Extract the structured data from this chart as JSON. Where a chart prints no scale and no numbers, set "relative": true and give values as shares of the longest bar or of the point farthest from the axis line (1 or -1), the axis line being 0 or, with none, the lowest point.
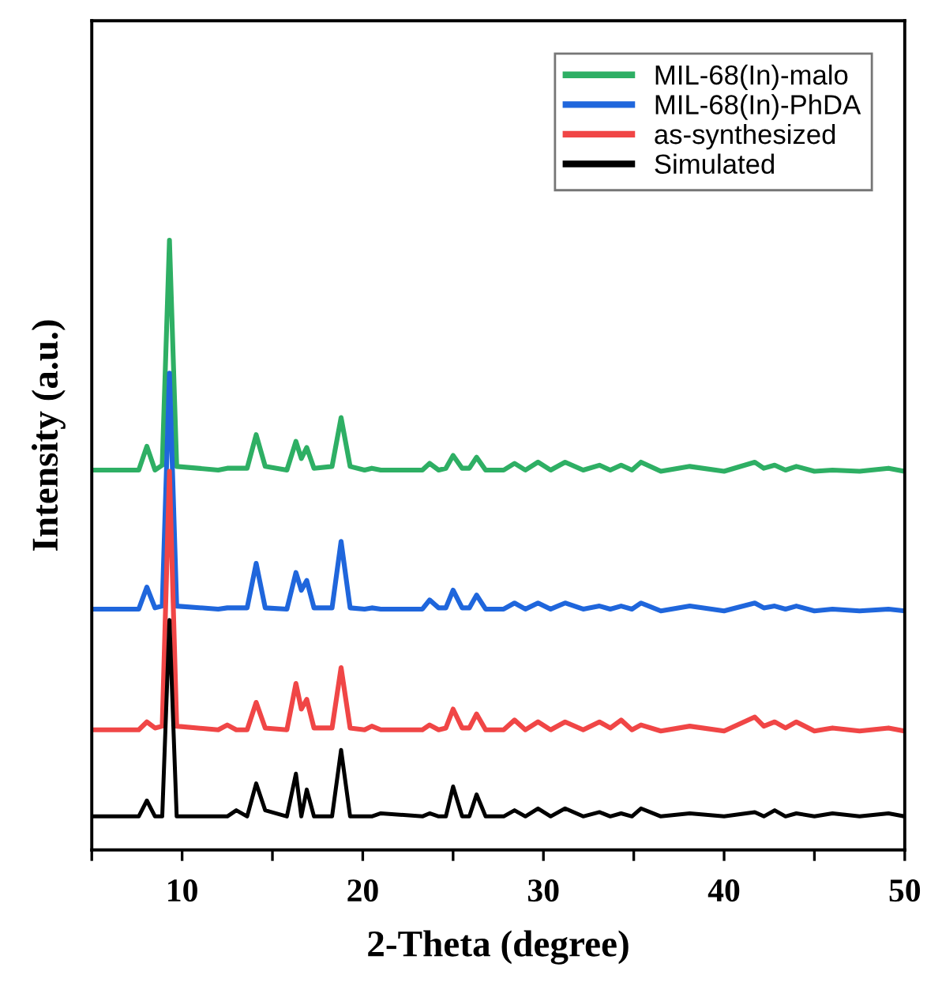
{
  "chart_data": {
    "type": "line",
    "relative": true,
    "xlabel": "2-Theta (degree)",
    "ylabel": "Intensity (a.u.)",
    "xlim": [
      5,
      50
    ],
    "xticks": [
      {
        "value": 5,
        "label": null
      },
      10,
      {
        "value": 15,
        "label": null
      },
      20,
      {
        "value": 25,
        "label": null
      },
      30,
      {
        "value": 35,
        "label": null
      },
      40,
      {
        "value": 45,
        "label": null
      },
      50
    ],
    "legend": "top right",
    "grid": false,
    "marker": "none",
    "line_style": "solid",
    "x": [
      5,
      7.6,
      8.05,
      8.5,
      8.9,
      9.3,
      9.7,
      12.0,
      12.5,
      13.0,
      13.6,
      14.1,
      14.6,
      15.8,
      16.3,
      16.6,
      16.9,
      17.3,
      18.3,
      18.8,
      19.3,
      20.1,
      20.5,
      21.0,
      23.3,
      23.7,
      24.2,
      24.6,
      25.0,
      25.5,
      25.9,
      26.3,
      26.8,
      27.8,
      28.4,
      29.0,
      29.7,
      30.4,
      31.2,
      32.2,
      33.1,
      33.7,
      34.3,
      34.9,
      35.4,
      36.5,
      38.1,
      40.0,
      41.7,
      42.2,
      42.8,
      43.4,
      44.0,
      45.0,
      46.0,
      47.5,
      49.1,
      50
    ],
    "series": [
      {
        "name": "MIL-68(In)-malo",
        "color": "#2eaf64",
        "values": [
          0.623,
          0.623,
          0.662,
          0.623,
          0.631,
          1.0,
          0.629,
          0.623,
          0.626,
          0.626,
          0.626,
          0.681,
          0.629,
          0.623,
          0.67,
          0.642,
          0.66,
          0.626,
          0.629,
          0.709,
          0.629,
          0.623,
          0.626,
          0.623,
          0.623,
          0.634,
          0.623,
          0.626,
          0.647,
          0.626,
          0.626,
          0.644,
          0.623,
          0.623,
          0.634,
          0.623,
          0.636,
          0.623,
          0.636,
          0.623,
          0.631,
          0.623,
          0.631,
          0.623,
          0.636,
          0.621,
          0.629,
          0.621,
          0.636,
          0.626,
          0.631,
          0.623,
          0.629,
          0.621,
          0.623,
          0.621,
          0.626,
          0.621
        ]
      },
      {
        "name": "MIL-68(In)-PhDA",
        "color": "#1f66dc",
        "values": [
          0.395,
          0.395,
          0.431,
          0.397,
          0.4,
          0.782,
          0.4,
          0.395,
          0.397,
          0.397,
          0.397,
          0.47,
          0.397,
          0.395,
          0.455,
          0.426,
          0.442,
          0.397,
          0.397,
          0.506,
          0.397,
          0.395,
          0.397,
          0.395,
          0.395,
          0.41,
          0.397,
          0.397,
          0.426,
          0.397,
          0.397,
          0.418,
          0.395,
          0.395,
          0.405,
          0.395,
          0.405,
          0.395,
          0.405,
          0.395,
          0.4,
          0.395,
          0.4,
          0.395,
          0.405,
          0.392,
          0.4,
          0.392,
          0.405,
          0.397,
          0.4,
          0.395,
          0.4,
          0.392,
          0.395,
          0.392,
          0.395,
          0.392
        ]
      },
      {
        "name": "as-synthesized",
        "color": "#f04646",
        "values": [
          0.197,
          0.197,
          0.21,
          0.2,
          0.203,
          0.621,
          0.203,
          0.197,
          0.205,
          0.197,
          0.197,
          0.242,
          0.2,
          0.197,
          0.273,
          0.231,
          0.247,
          0.2,
          0.2,
          0.299,
          0.2,
          0.197,
          0.203,
          0.197,
          0.197,
          0.205,
          0.197,
          0.2,
          0.231,
          0.2,
          0.2,
          0.223,
          0.197,
          0.197,
          0.213,
          0.197,
          0.21,
          0.197,
          0.21,
          0.197,
          0.21,
          0.2,
          0.213,
          0.197,
          0.205,
          0.195,
          0.203,
          0.195,
          0.218,
          0.203,
          0.21,
          0.2,
          0.21,
          0.195,
          0.2,
          0.195,
          0.2,
          0.195
        ]
      },
      {
        "name": "Simulated",
        "color": "#000000",
        "values": [
          0.055,
          0.055,
          0.081,
          0.055,
          0.055,
          0.377,
          0.055,
          0.055,
          0.055,
          0.065,
          0.055,
          0.109,
          0.065,
          0.055,
          0.125,
          0.055,
          0.099,
          0.055,
          0.055,
          0.164,
          0.055,
          0.055,
          0.055,
          0.06,
          0.055,
          0.06,
          0.055,
          0.055,
          0.104,
          0.055,
          0.055,
          0.091,
          0.055,
          0.055,
          0.065,
          0.055,
          0.068,
          0.055,
          0.068,
          0.055,
          0.062,
          0.055,
          0.06,
          0.055,
          0.068,
          0.055,
          0.06,
          0.055,
          0.062,
          0.055,
          0.065,
          0.055,
          0.06,
          0.055,
          0.06,
          0.055,
          0.06,
          0.055
        ]
      }
    ]
  }
}
